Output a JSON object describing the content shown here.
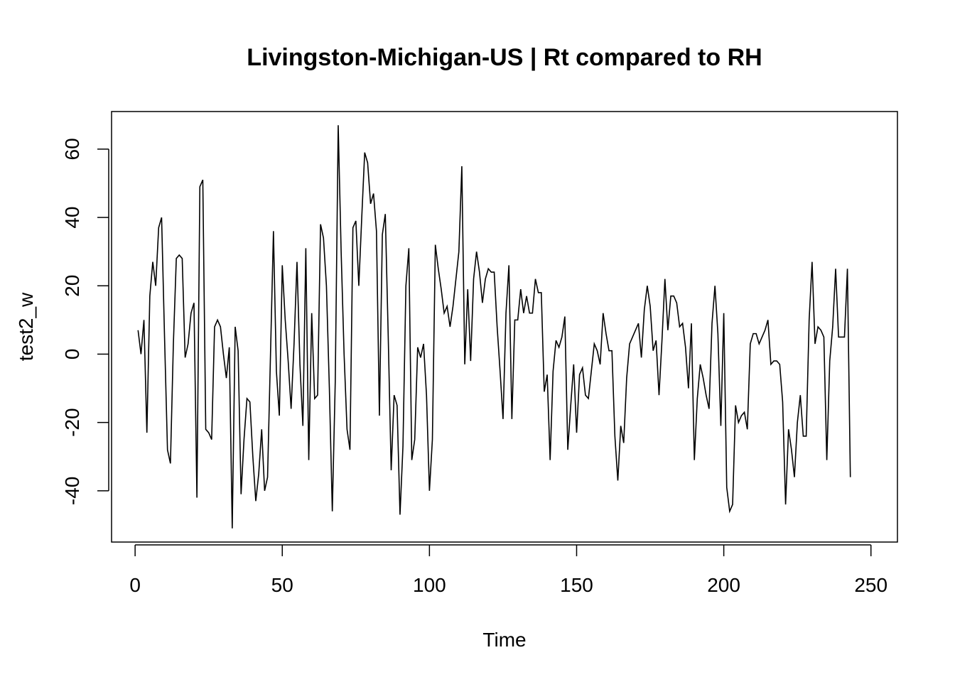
{
  "chart_data": {
    "type": "line",
    "title": "Livingston-Michigan-US | Rt compared to RH",
    "xlabel": "Time",
    "ylabel": "test2_w",
    "xlim": [
      -8,
      259
    ],
    "ylim": [
      -55,
      71
    ],
    "x_ticks": [
      0,
      50,
      100,
      150,
      200,
      250
    ],
    "x_tick_labels": [
      "0",
      "50",
      "100",
      "150",
      "200",
      "250"
    ],
    "y_ticks": [
      -40,
      -20,
      0,
      20,
      40,
      60
    ],
    "y_tick_labels": [
      "-40",
      "-20",
      "0",
      "20",
      "40",
      "60"
    ],
    "grid": false,
    "line_color": "#000000",
    "series": [
      {
        "x_start": 1,
        "x_step": 1,
        "values": [
          7,
          0,
          10,
          -23,
          17,
          27,
          20,
          37,
          40,
          5,
          -28,
          -32,
          3,
          28,
          29,
          28,
          -1,
          3,
          12,
          15,
          -42,
          49,
          51,
          -22,
          -23,
          -25,
          8,
          10,
          8,
          0,
          -7,
          2,
          -51,
          8,
          1,
          -41,
          -25,
          -13,
          -14,
          -30,
          -43,
          -35,
          -22,
          -40,
          -36,
          0,
          36,
          -5,
          -18,
          26,
          10,
          -2,
          -16,
          3,
          27,
          -3,
          -21,
          31,
          -31,
          12,
          -13,
          -12,
          38,
          34,
          20,
          -10,
          -46,
          -8,
          67,
          30,
          0,
          -22,
          -28,
          37,
          39,
          20,
          40,
          59,
          56,
          44,
          47,
          36,
          -18,
          35,
          41,
          5,
          -34,
          -12,
          -15,
          -47,
          -27,
          20,
          31,
          -31,
          -25,
          2,
          -1,
          3,
          -12,
          -40,
          -25,
          32,
          25,
          19,
          12,
          14,
          8,
          14,
          22,
          30,
          55,
          -3,
          19,
          -2,
          22,
          30,
          24,
          15,
          22,
          25,
          24,
          24,
          8,
          -5,
          -19,
          12,
          26,
          -19,
          10,
          10,
          19,
          12,
          17,
          12,
          12,
          22,
          18,
          18,
          -11,
          -6,
          -31,
          -5,
          4,
          2,
          5,
          11,
          -28,
          -15,
          -3,
          -23,
          -6,
          -4,
          -12,
          -13,
          -5,
          3,
          1,
          -3,
          12,
          6,
          1,
          1,
          -24,
          -37,
          -21,
          -26,
          -7,
          3,
          5,
          7,
          9,
          -1,
          13,
          20,
          14,
          1,
          4,
          -12,
          4,
          22,
          7,
          17,
          17,
          15,
          8,
          9,
          2,
          -10,
          9,
          -31,
          -13,
          -3,
          -7,
          -12,
          -16,
          9,
          20,
          6,
          -21,
          12,
          -39,
          -46,
          -44,
          -15,
          -20,
          -18,
          -17,
          -22,
          3,
          6,
          6,
          3,
          5,
          7,
          10,
          -3,
          -2,
          -2,
          -3,
          -14,
          -44,
          -22,
          -28,
          -36,
          -20,
          -12,
          -24,
          -24,
          10,
          27,
          3,
          8,
          7,
          5,
          -31,
          -2,
          8,
          25,
          5,
          5,
          5,
          25,
          -36
        ]
      }
    ]
  }
}
